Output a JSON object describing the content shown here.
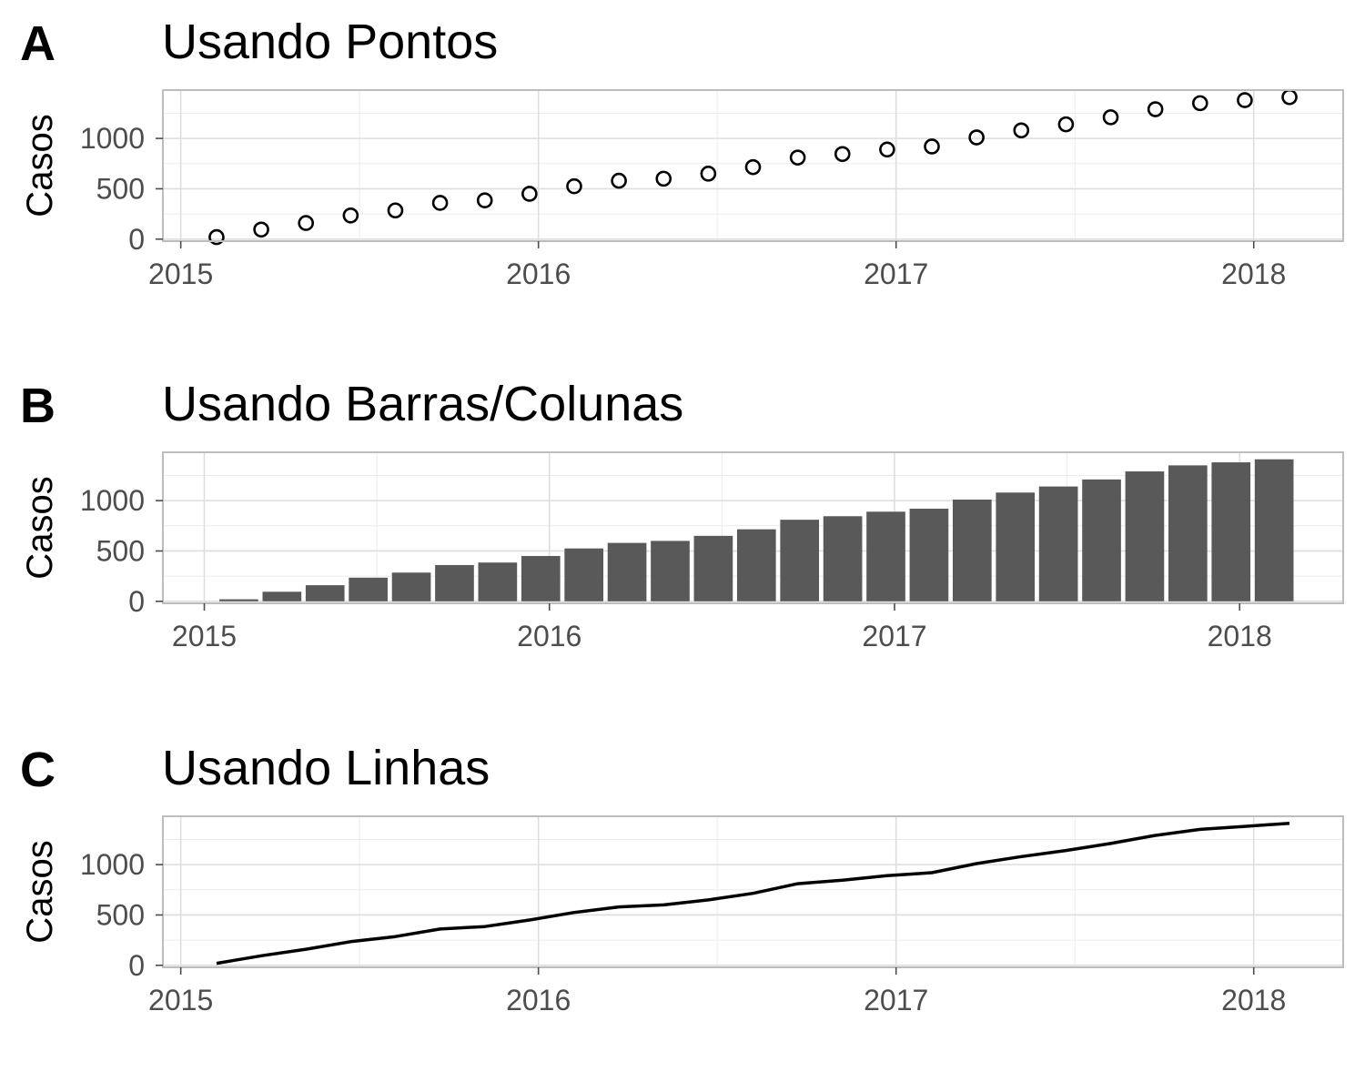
{
  "chart_data": [
    {
      "type": "scatter",
      "tag": "A",
      "title": "Usando Pontos",
      "ylabel": "Casos",
      "xlabel": "",
      "xlim": [
        2014.95,
        2018.25
      ],
      "ylim": [
        -20,
        1480
      ],
      "x_ticks": [
        2015,
        2016,
        2017,
        2018
      ],
      "x_tick_labels": [
        "2015",
        "2016",
        "2017",
        "2018"
      ],
      "y_ticks": [
        0,
        500,
        1000
      ],
      "y_tick_labels": [
        "0",
        "500",
        "1000"
      ],
      "x": [
        2015.1,
        2015.225,
        2015.35,
        2015.475,
        2015.6,
        2015.725,
        2015.85,
        2015.975,
        2016.1,
        2016.225,
        2016.35,
        2016.475,
        2016.6,
        2016.725,
        2016.85,
        2016.975,
        2017.1,
        2017.225,
        2017.35,
        2017.475,
        2017.6,
        2017.725,
        2017.85,
        2017.975,
        2018.1
      ],
      "values": [
        20,
        95,
        160,
        235,
        285,
        360,
        385,
        450,
        525,
        580,
        600,
        650,
        715,
        810,
        845,
        890,
        920,
        1010,
        1080,
        1140,
        1210,
        1290,
        1350,
        1380,
        1410
      ],
      "grid": true
    },
    {
      "type": "bar",
      "tag": "B",
      "title": "Usando Barras/Colunas",
      "ylabel": "Casos",
      "xlabel": "",
      "xlim": [
        2014.88,
        2018.3
      ],
      "ylim": [
        -20,
        1480
      ],
      "x_ticks": [
        2015,
        2016,
        2017,
        2018
      ],
      "x_tick_labels": [
        "2015",
        "2016",
        "2017",
        "2018"
      ],
      "y_ticks": [
        0,
        500,
        1000
      ],
      "y_tick_labels": [
        "0",
        "500",
        "1000"
      ],
      "x": [
        2015.1,
        2015.225,
        2015.35,
        2015.475,
        2015.6,
        2015.725,
        2015.85,
        2015.975,
        2016.1,
        2016.225,
        2016.35,
        2016.475,
        2016.6,
        2016.725,
        2016.85,
        2016.975,
        2017.1,
        2017.225,
        2017.35,
        2017.475,
        2017.6,
        2017.725,
        2017.85,
        2017.975,
        2018.1
      ],
      "values": [
        20,
        95,
        160,
        235,
        285,
        360,
        385,
        450,
        525,
        580,
        600,
        650,
        715,
        810,
        845,
        890,
        920,
        1010,
        1080,
        1140,
        1210,
        1290,
        1350,
        1380,
        1410
      ],
      "bar_color": "#595959",
      "grid": true
    },
    {
      "type": "line",
      "tag": "C",
      "title": "Usando Linhas",
      "ylabel": "Casos",
      "xlabel": "",
      "xlim": [
        2014.95,
        2018.25
      ],
      "ylim": [
        -20,
        1480
      ],
      "x_ticks": [
        2015,
        2016,
        2017,
        2018
      ],
      "x_tick_labels": [
        "2015",
        "2016",
        "2017",
        "2018"
      ],
      "y_ticks": [
        0,
        500,
        1000
      ],
      "y_tick_labels": [
        "0",
        "500",
        "1000"
      ],
      "x": [
        2015.1,
        2015.225,
        2015.35,
        2015.475,
        2015.6,
        2015.725,
        2015.85,
        2015.975,
        2016.1,
        2016.225,
        2016.35,
        2016.475,
        2016.6,
        2016.725,
        2016.85,
        2016.975,
        2017.1,
        2017.225,
        2017.35,
        2017.475,
        2017.6,
        2017.725,
        2017.85,
        2017.975,
        2018.1
      ],
      "values": [
        20,
        95,
        160,
        235,
        285,
        360,
        385,
        450,
        525,
        580,
        600,
        650,
        715,
        810,
        845,
        890,
        920,
        1010,
        1080,
        1140,
        1210,
        1290,
        1350,
        1380,
        1410
      ],
      "line_color": "#000000",
      "grid": true
    }
  ]
}
